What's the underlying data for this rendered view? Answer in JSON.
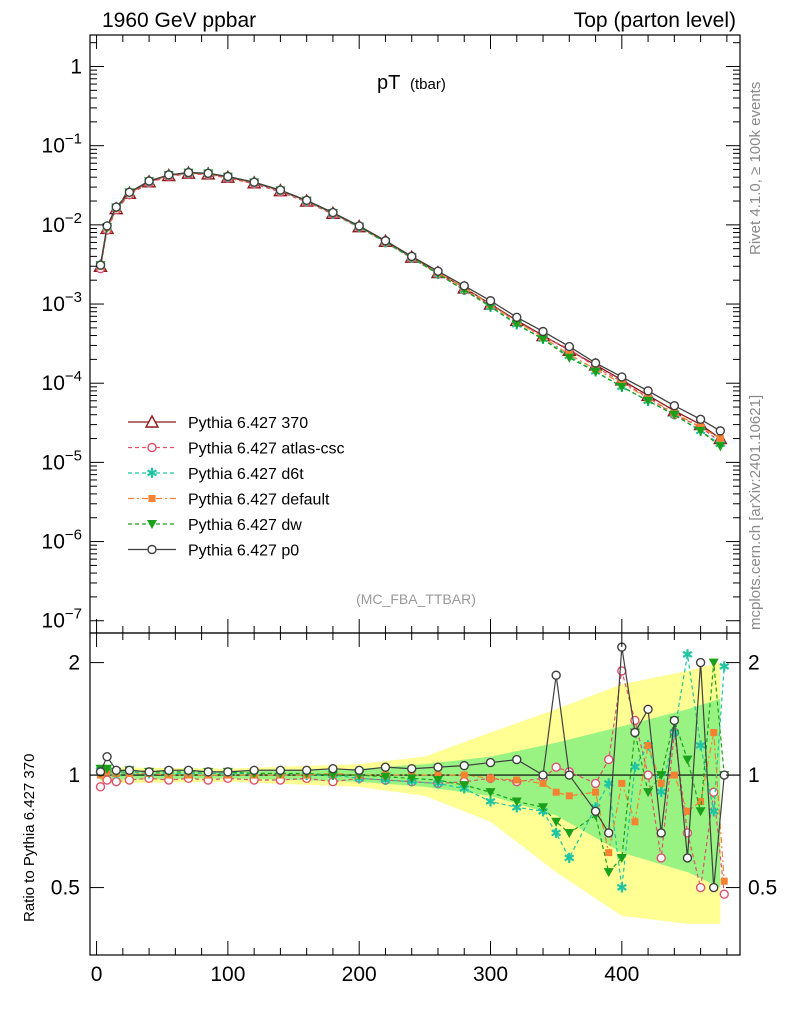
{
  "header": {
    "left": "1960 GeV ppbar",
    "right": "Top (parton level)"
  },
  "side_labels": {
    "rivet": "Rivet 4.1.0, ≥ 100k events",
    "mcplots": "mcplots.cern.ch [arXiv:2401.10621]"
  },
  "chart_data": [
    {
      "type": "line",
      "title": "pT",
      "title_sub": "(tbar)",
      "watermark": "(MC_FBA_TTBAR)",
      "xlabel": "",
      "ylabel": "",
      "yscale": "log",
      "xlim": [
        -5,
        490
      ],
      "ylim": [
        7e-08,
        2.5
      ],
      "grid": false,
      "legend_position": "middle-left",
      "ytick_labels": [
        "1",
        "10^-1",
        "10^-2",
        "10^-3",
        "10^-4",
        "10^-5",
        "10^-6",
        "10^-7"
      ],
      "x": [
        3,
        8,
        15,
        25,
        40,
        55,
        70,
        85,
        100,
        120,
        140,
        160,
        180,
        200,
        220,
        240,
        260,
        280,
        300,
        320,
        340,
        360,
        380,
        400,
        420,
        440,
        460,
        475
      ],
      "series": [
        {
          "name": "Pythia 6.427 370",
          "color": "#8b1a1a",
          "marker": "triangle-open",
          "dash": "",
          "values": [
            0.003,
            0.009,
            0.016,
            0.025,
            0.035,
            0.042,
            0.045,
            0.044,
            0.04,
            0.034,
            0.027,
            0.02,
            0.014,
            0.0095,
            0.0062,
            0.0039,
            0.0025,
            0.0016,
            0.001,
            0.00062,
            0.0004,
            0.00026,
            0.00017,
            0.00011,
            7e-05,
            4.5e-05,
            3e-05,
            2e-05
          ]
        },
        {
          "name": "Pythia 6.427 atlas-csc",
          "color": "#e0506e",
          "marker": "circle-open",
          "dash": "4,3",
          "values": [
            0.0028,
            0.0086,
            0.0155,
            0.024,
            0.034,
            0.041,
            0.044,
            0.043,
            0.039,
            0.033,
            0.026,
            0.0195,
            0.0136,
            0.0093,
            0.006,
            0.0038,
            0.0024,
            0.0015,
            0.00097,
            0.0006,
            0.00039,
            0.00027,
            0.00016,
            0.000105,
            6.6e-05,
            4e-05,
            2.8e-05,
            1.8e-05
          ]
        },
        {
          "name": "Pythia 6.427 d6t",
          "color": "#1fc5a3",
          "marker": "star",
          "dash": "4,3",
          "values": [
            0.0031,
            0.0093,
            0.0165,
            0.0255,
            0.0355,
            0.0425,
            0.0455,
            0.0445,
            0.0405,
            0.0343,
            0.0272,
            0.0201,
            0.014,
            0.0094,
            0.006,
            0.0038,
            0.0024,
            0.0015,
            0.00092,
            0.00055,
            0.00036,
            0.00022,
            0.00014,
            9e-05,
            6e-05,
            4e-05,
            2.5e-05,
            1.7e-05
          ]
        },
        {
          "name": "Pythia 6.427 default",
          "color": "#f58231",
          "marker": "square",
          "dash": "6,3,2,3",
          "values": [
            0.003,
            0.0092,
            0.0162,
            0.0252,
            0.0352,
            0.0422,
            0.0452,
            0.0442,
            0.0402,
            0.0342,
            0.0271,
            0.0201,
            0.0141,
            0.0095,
            0.0061,
            0.0039,
            0.0025,
            0.0016,
            0.00098,
            0.0006,
            0.00038,
            0.00023,
            0.00015,
            0.0001,
            6.5e-05,
            4.2e-05,
            2.8e-05,
            2e-05
          ]
        },
        {
          "name": "Pythia 6.427 dw",
          "color": "#1aa01a",
          "marker": "triangle-down",
          "dash": "4,3",
          "values": [
            0.0031,
            0.0094,
            0.0166,
            0.0257,
            0.0357,
            0.0427,
            0.0457,
            0.0447,
            0.0406,
            0.0344,
            0.0273,
            0.0202,
            0.0141,
            0.0095,
            0.0061,
            0.0039,
            0.0024,
            0.0015,
            0.00093,
            0.00056,
            0.00036,
            0.00021,
            0.00014,
            9e-05,
            6e-05,
            4e-05,
            2.5e-05,
            1.6e-05
          ]
        },
        {
          "name": "Pythia 6.427 p0",
          "color": "#404040",
          "marker": "circle-open",
          "dash": "",
          "values": [
            0.0031,
            0.0097,
            0.0168,
            0.0258,
            0.0358,
            0.0428,
            0.0458,
            0.0448,
            0.0408,
            0.0346,
            0.0275,
            0.0204,
            0.0143,
            0.0097,
            0.0063,
            0.004,
            0.0026,
            0.0017,
            0.0011,
            0.00068,
            0.00045,
            0.00029,
            0.00018,
            0.00012,
            8e-05,
            5.2e-05,
            3.5e-05,
            2.5e-05
          ]
        }
      ]
    },
    {
      "type": "line",
      "title": "",
      "xlabel": "",
      "ylabel": "Ratio to Pythia 6.427 370",
      "yscale": "log",
      "xlim": [
        -5,
        490
      ],
      "ylim": [
        0.33,
        2.4
      ],
      "ytick_labels": [
        "0.5",
        "1",
        "2"
      ],
      "yticks": [
        0.5,
        1,
        2
      ],
      "xtick_labels": [
        "0",
        "100",
        "200",
        "300",
        "400"
      ],
      "xticks": [
        0,
        100,
        200,
        300,
        400
      ],
      "reference": 1,
      "uncertainty_band": {
        "x": [
          3,
          100,
          200,
          250,
          300,
          350,
          400,
          450,
          475
        ],
        "yellow_low": [
          0.95,
          0.96,
          0.93,
          0.88,
          0.75,
          0.55,
          0.42,
          0.4,
          0.4
        ],
        "yellow_high": [
          1.05,
          1.04,
          1.07,
          1.12,
          1.3,
          1.5,
          1.75,
          1.9,
          2.0
        ],
        "green_low": [
          0.97,
          0.98,
          0.96,
          0.93,
          0.88,
          0.78,
          0.62,
          0.55,
          0.5
        ],
        "green_high": [
          1.03,
          1.02,
          1.04,
          1.07,
          1.12,
          1.22,
          1.35,
          1.5,
          1.6
        ]
      },
      "x": [
        3,
        8,
        15,
        25,
        40,
        55,
        70,
        85,
        100,
        120,
        140,
        160,
        180,
        200,
        220,
        240,
        260,
        280,
        300,
        320,
        340,
        350,
        360,
        380,
        390,
        400,
        410,
        420,
        430,
        440,
        450,
        460,
        470,
        478
      ],
      "series": [
        {
          "name": "Pythia 6.427 atlas-csc",
          "color": "#e0506e",
          "marker": "circle-open",
          "dash": "4,3",
          "values": [
            0.93,
            0.97,
            0.96,
            0.97,
            0.98,
            0.97,
            0.98,
            0.97,
            0.98,
            0.97,
            0.97,
            0.98,
            0.96,
            0.98,
            0.97,
            0.96,
            0.95,
            0.96,
            0.98,
            0.96,
            0.98,
            1.05,
            1.02,
            0.95,
            1.1,
            1.9,
            1.4,
            1.0,
            0.6,
            1.3,
            0.7,
            0.5,
            0.9,
            0.48
          ]
        },
        {
          "name": "Pythia 6.427 d6t",
          "color": "#1fc5a3",
          "marker": "star",
          "dash": "4,3",
          "values": [
            1.03,
            1.03,
            1.01,
            1.02,
            1.01,
            1.01,
            1.01,
            1.01,
            1.01,
            1.01,
            1.01,
            1.0,
            1.0,
            0.98,
            0.97,
            0.96,
            0.95,
            0.92,
            0.85,
            0.82,
            0.8,
            0.7,
            0.6,
            0.82,
            0.95,
            0.5,
            1.05,
            1.2,
            0.9,
            1.3,
            2.1,
            1.2,
            0.8,
            1.95
          ]
        },
        {
          "name": "Pythia 6.427 default",
          "color": "#f58231",
          "marker": "square",
          "dash": "6,3,2,3",
          "values": [
            1.0,
            1.02,
            1.01,
            1.01,
            1.01,
            1.0,
            1.0,
            1.0,
            1.0,
            1.0,
            1.0,
            1.0,
            1.01,
            1.0,
            1.0,
            1.0,
            1.0,
            1.0,
            0.98,
            0.97,
            0.95,
            0.9,
            0.88,
            0.9,
            0.62,
            0.95,
            0.75,
            1.2,
            0.95,
            1.0,
            0.8,
            0.85,
            1.3,
            0.52
          ]
        },
        {
          "name": "Pythia 6.427 dw",
          "color": "#1aa01a",
          "marker": "triangle-down",
          "dash": "4,3",
          "values": [
            1.04,
            1.04,
            1.02,
            1.03,
            1.02,
            1.02,
            1.02,
            1.02,
            1.02,
            1.01,
            1.01,
            1.01,
            1.0,
            1.0,
            0.99,
            0.98,
            0.97,
            0.94,
            0.9,
            0.85,
            0.82,
            0.75,
            0.7,
            0.78,
            0.55,
            0.6,
            1.3,
            0.9,
            1.0,
            1.4,
            1.1,
            0.8,
            2.0,
            1.0
          ]
        },
        {
          "name": "Pythia 6.427 p0",
          "color": "#404040",
          "marker": "circle-open",
          "dash": "",
          "values": [
            1.02,
            1.12,
            1.03,
            1.03,
            1.02,
            1.03,
            1.03,
            1.02,
            1.02,
            1.03,
            1.03,
            1.03,
            1.04,
            1.03,
            1.05,
            1.04,
            1.05,
            1.06,
            1.08,
            1.1,
            1.0,
            1.85,
            1.0,
            0.8,
            0.7,
            2.2,
            1.3,
            1.5,
            0.7,
            1.4,
            0.6,
            2.0,
            0.5,
            1.0
          ]
        }
      ]
    }
  ]
}
